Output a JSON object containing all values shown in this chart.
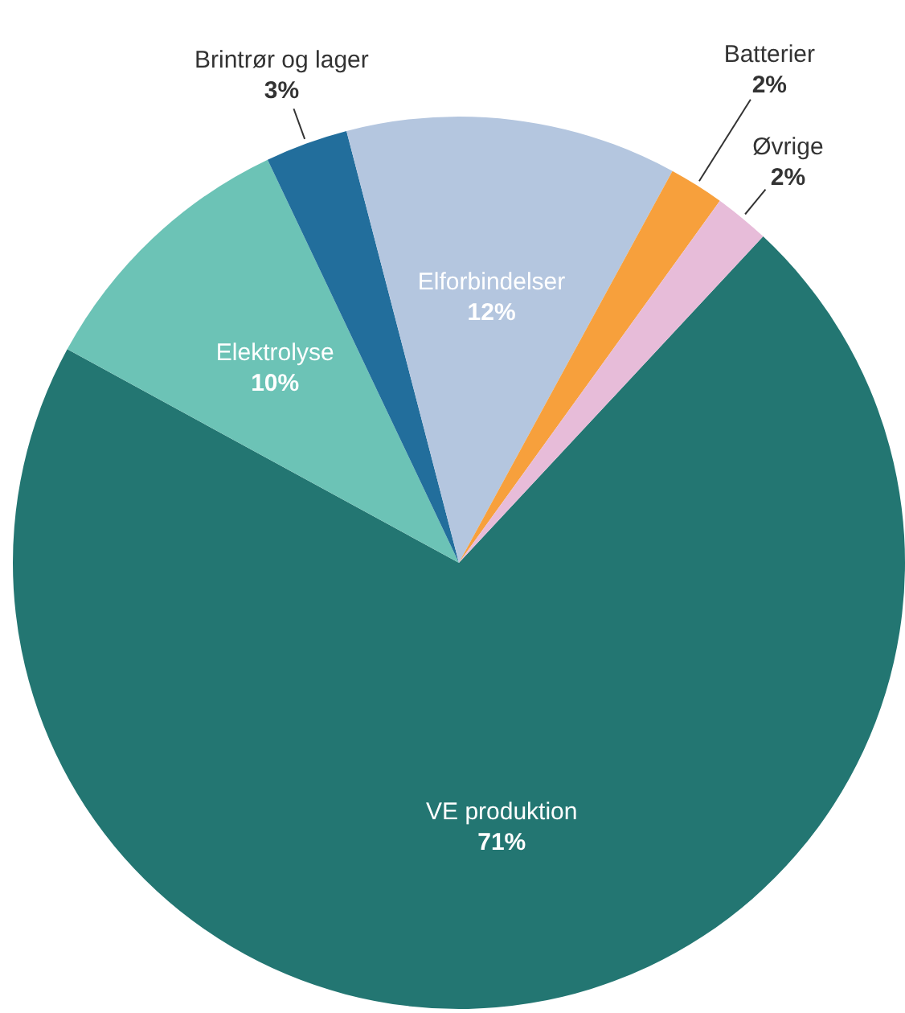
{
  "chart_data": {
    "type": "pie",
    "categories": [
      "VE produktion",
      "Elektrolyse",
      "Brintrør og lager",
      "Elforbindelser",
      "Batterier",
      "Øvrige"
    ],
    "values": [
      71,
      10,
      3,
      12,
      2,
      2
    ],
    "colors": [
      "#237672",
      "#6cc3b6",
      "#226e9c",
      "#b4c6df",
      "#f7a03c",
      "#e7bcd9"
    ],
    "value_labels": [
      "71%",
      "10%",
      "3%",
      "12%",
      "2%",
      "2%"
    ],
    "legend": false
  }
}
